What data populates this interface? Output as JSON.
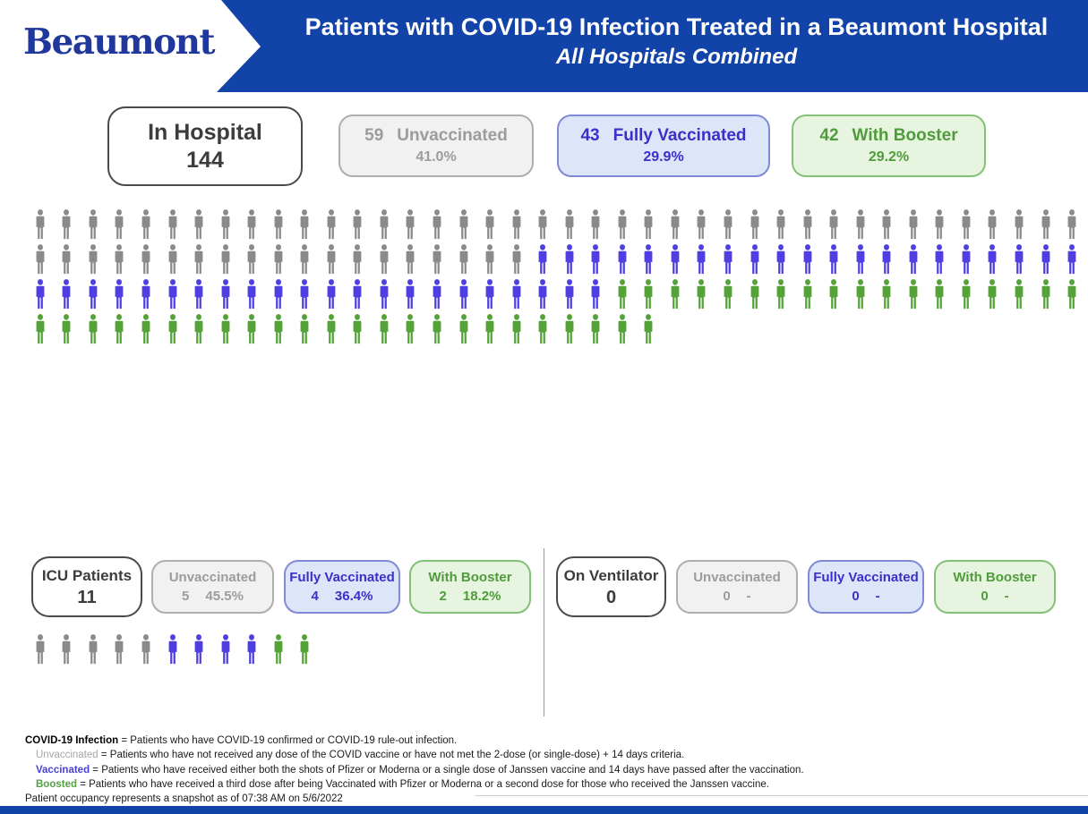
{
  "colors": {
    "banner_blue": "#1243A8",
    "logo_blue": "#20389B",
    "unvaccinated_gray": "#8A8A8A",
    "vaccinated_blue": "#4F3FE0",
    "boosted_green": "#55A338"
  },
  "header": {
    "logo": "Beaumont",
    "title_line1": "Patients with COVID-19 Infection Treated in a Beaumont Hospital",
    "title_line2": "All Hospitals Combined"
  },
  "in_hospital": {
    "label": "In Hospital",
    "count": "144",
    "groups": [
      {
        "count": "59",
        "label": "Unvaccinated",
        "pct": "41.0%"
      },
      {
        "count": "43",
        "label": "Fully Vaccinated",
        "pct": "29.9%"
      },
      {
        "count": "42",
        "label": "With Booster",
        "pct": "29.2%"
      }
    ],
    "pictogram_rows": [
      [
        {
          "color": "gray",
          "n": 40
        }
      ],
      [
        {
          "color": "gray",
          "n": 19
        },
        {
          "color": "blue",
          "n": 21
        }
      ],
      [
        {
          "color": "blue",
          "n": 22
        },
        {
          "color": "green",
          "n": 18
        }
      ],
      [
        {
          "color": "green",
          "n": 24
        }
      ]
    ]
  },
  "icu": {
    "label": "ICU Patients",
    "count": "11",
    "groups": [
      {
        "count": "5",
        "label": "Unvaccinated",
        "pct": "45.5%"
      },
      {
        "count": "4",
        "label": "Fully Vaccinated",
        "pct": "36.4%"
      },
      {
        "count": "2",
        "label": "With Booster",
        "pct": "18.2%"
      }
    ],
    "pictogram_rows": [
      [
        {
          "color": "gray",
          "n": 5
        },
        {
          "color": "blue",
          "n": 4
        },
        {
          "color": "green",
          "n": 2
        }
      ]
    ]
  },
  "ventilator": {
    "label": "On Ventilator",
    "count": "0",
    "groups": [
      {
        "count": "0",
        "label": "Unvaccinated",
        "pct": "-"
      },
      {
        "count": "0",
        "label": "Fully Vaccinated",
        "pct": "-"
      },
      {
        "count": "0",
        "label": "With Booster",
        "pct": "-"
      }
    ]
  },
  "footnotes": [
    {
      "term": "COVID-19 Infection",
      "rest": " = Patients who have COVID-19 confirmed or COVID-19 rule-out infection."
    },
    {
      "term": "Unvaccinated",
      "rest": " = Patients who have not received any dose of the COVID vaccine or have not met the 2-dose (or single-dose) + 14 days criteria."
    },
    {
      "term": "Vaccinated",
      "rest": " = Patients who have received either both the shots of Pfizer or Moderna or a single dose of Janssen vaccine and 14 days have passed after the vaccination."
    },
    {
      "term": "Boosted",
      "rest": " = Patients who have received a third dose after being Vaccinated with Pfizer or Moderna or a second dose for those who received the Janssen vaccine."
    },
    {
      "term": "",
      "rest": "Patient occupancy represents a snapshot as of 07:38 AM on 5/6/2022"
    }
  ],
  "chart_data": [
    {
      "type": "pictogram",
      "title": "In Hospital",
      "total": 144,
      "categories": [
        "Unvaccinated",
        "Fully Vaccinated",
        "With Booster"
      ],
      "values": [
        59,
        43,
        42
      ],
      "percents": [
        "41.0%",
        "29.9%",
        "29.2%"
      ],
      "icons_per_row": 40,
      "legend_colors": [
        "#8A8A8A",
        "#4F3FE0",
        "#55A338"
      ]
    },
    {
      "type": "pictogram",
      "title": "ICU Patients",
      "total": 11,
      "categories": [
        "Unvaccinated",
        "Fully Vaccinated",
        "With Booster"
      ],
      "values": [
        5,
        4,
        2
      ],
      "percents": [
        "45.5%",
        "36.4%",
        "18.2%"
      ],
      "legend_colors": [
        "#8A8A8A",
        "#4F3FE0",
        "#55A338"
      ]
    },
    {
      "type": "pictogram",
      "title": "On Ventilator",
      "total": 0,
      "categories": [
        "Unvaccinated",
        "Fully Vaccinated",
        "With Booster"
      ],
      "values": [
        0,
        0,
        0
      ],
      "percents": [
        "-",
        "-",
        "-"
      ],
      "legend_colors": [
        "#8A8A8A",
        "#4F3FE0",
        "#55A338"
      ]
    }
  ]
}
